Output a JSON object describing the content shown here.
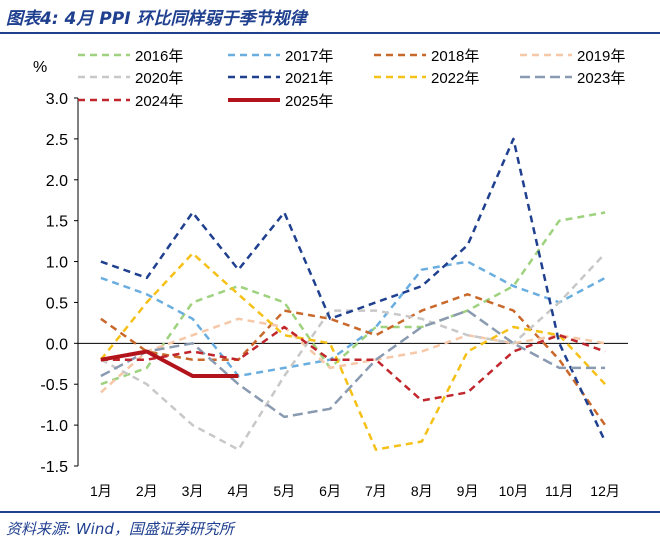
{
  "header": {
    "title": "图表4:  4月 PPI 环比同样弱于季节规律"
  },
  "footer": {
    "source": "资料来源:  Wind，国盛证券研究所"
  },
  "chart_data": {
    "type": "line",
    "ylabel": "%",
    "ylim": [
      -1.5,
      3.0
    ],
    "yticks": [
      "3.0",
      "2.5",
      "2.0",
      "1.5",
      "1.0",
      "0.5",
      "0.0",
      "-0.5",
      "-1.0",
      "-1.5"
    ],
    "categories": [
      "1月",
      "2月",
      "3月",
      "4月",
      "5月",
      "6月",
      "7月",
      "8月",
      "9月",
      "10月",
      "11月",
      "12月"
    ],
    "legend_position": "top",
    "series": [
      {
        "name": "2016年",
        "color": "#9ed27e",
        "dash": "dash",
        "values": [
          -0.5,
          -0.3,
          0.5,
          0.7,
          0.5,
          -0.3,
          0.2,
          0.2,
          0.4,
          0.7,
          1.5,
          1.6
        ]
      },
      {
        "name": "2017年",
        "color": "#6aaee0",
        "dash": "dash",
        "values": [
          0.8,
          0.6,
          0.3,
          -0.4,
          -0.3,
          -0.2,
          0.2,
          0.9,
          1.0,
          0.7,
          0.5,
          0.8
        ]
      },
      {
        "name": "2018年",
        "color": "#c9682b",
        "dash": "dash",
        "values": [
          0.3,
          -0.1,
          -0.2,
          -0.2,
          0.4,
          0.3,
          0.1,
          0.4,
          0.6,
          0.4,
          -0.2,
          -1.0
        ]
      },
      {
        "name": "2019年",
        "color": "#f6c8a8",
        "dash": "dash",
        "values": [
          -0.6,
          -0.1,
          0.1,
          0.3,
          0.2,
          -0.3,
          -0.2,
          -0.1,
          0.1,
          0.0,
          0.1,
          0.0
        ]
      },
      {
        "name": "2020年",
        "color": "#c8c8c8",
        "dash": "dash",
        "values": [
          -0.2,
          -0.5,
          -1.0,
          -1.3,
          -0.4,
          0.4,
          0.4,
          0.3,
          0.1,
          0.0,
          0.5,
          1.1
        ]
      },
      {
        "name": "2021年",
        "color": "#1f3f8f",
        "dash": "dash",
        "values": [
          1.0,
          0.8,
          1.6,
          0.9,
          1.6,
          0.3,
          0.5,
          0.7,
          1.2,
          2.5,
          0.0,
          -1.2
        ]
      },
      {
        "name": "2022年",
        "color": "#f5c118",
        "dash": "dash",
        "values": [
          -0.2,
          0.5,
          1.1,
          0.6,
          0.1,
          0.0,
          -1.3,
          -1.2,
          -0.1,
          0.2,
          0.1,
          -0.5
        ]
      },
      {
        "name": "2023年",
        "color": "#8a9ab0",
        "dash": "longdash",
        "values": [
          -0.4,
          -0.1,
          0.0,
          -0.5,
          -0.9,
          -0.8,
          -0.2,
          0.2,
          0.4,
          0.0,
          -0.3,
          -0.3
        ]
      },
      {
        "name": "2024年",
        "color": "#c0262c",
        "dash": "dash",
        "values": [
          -0.2,
          -0.2,
          -0.1,
          -0.2,
          0.2,
          -0.2,
          -0.2,
          -0.7,
          -0.6,
          -0.1,
          0.1,
          -0.1
        ]
      },
      {
        "name": "2025年",
        "color": "#b3141c",
        "dash": "solid",
        "width": 4,
        "values": [
          -0.2,
          -0.1,
          -0.4,
          -0.4,
          null,
          null,
          null,
          null,
          null,
          null,
          null,
          null
        ]
      }
    ]
  }
}
